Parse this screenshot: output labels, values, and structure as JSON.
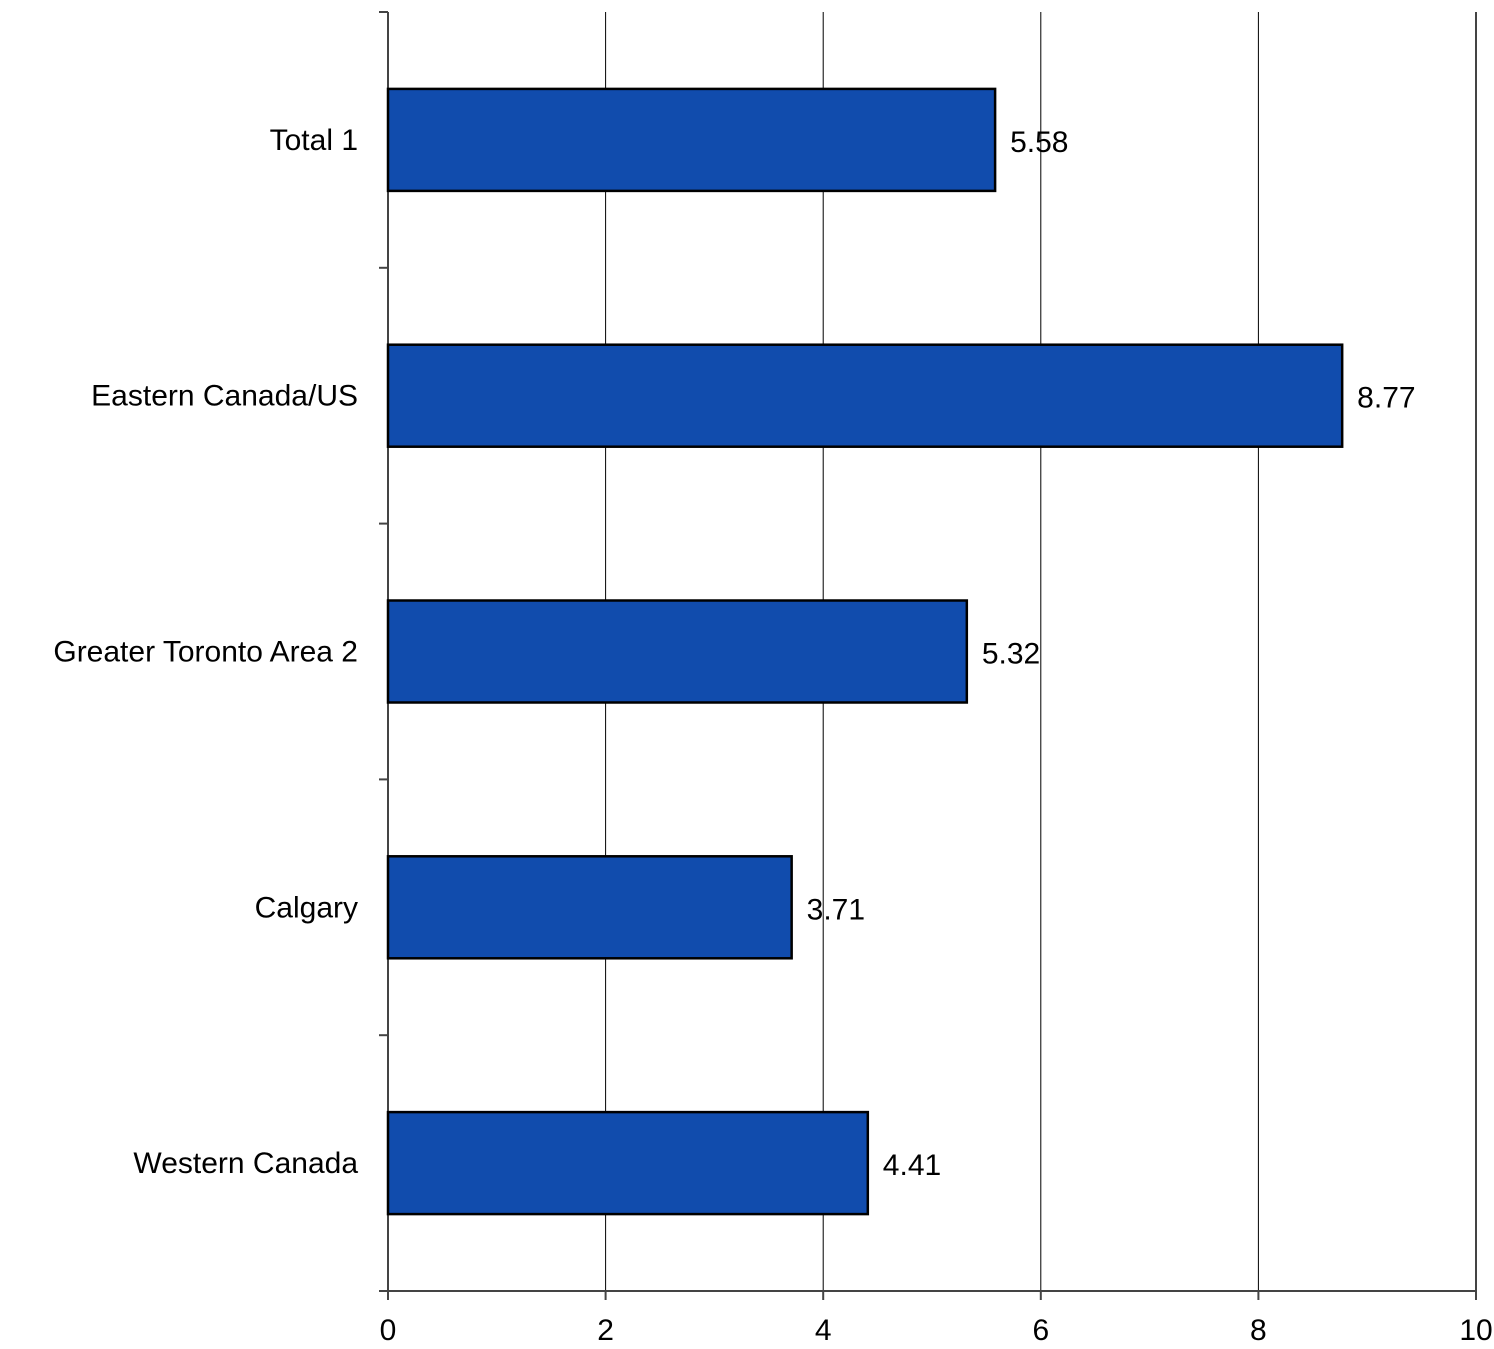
{
  "chart_data": {
    "type": "bar",
    "orientation": "horizontal",
    "categories": [
      "Total 1",
      "Eastern Canada/US",
      "Greater Toronto Area  2",
      "Calgary",
      "Western Canada"
    ],
    "values": [
      5.58,
      8.77,
      5.32,
      3.71,
      4.41
    ],
    "data_labels": [
      "5.58",
      "8.77",
      "5.32",
      "3.71",
      "4.41"
    ],
    "xticks": [
      "0",
      "2",
      "4",
      "6",
      "8",
      "10"
    ],
    "xlim": [
      0,
      10
    ],
    "title": "",
    "xlabel": "",
    "ylabel": "",
    "grid": true,
    "legend": "none",
    "colors": {
      "bar": "#114CAD",
      "bar_edge": "#000000",
      "grid": "#000000",
      "axis": "#444444"
    }
  }
}
